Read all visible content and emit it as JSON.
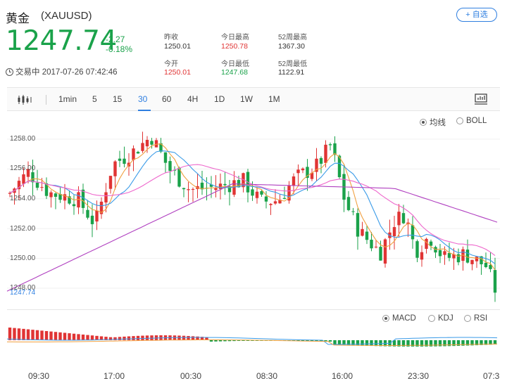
{
  "header": {
    "title": "黄金",
    "symbol": "(XAUUSD)",
    "add_label": "+ 自选",
    "price": "1247.74",
    "change": "-2.27",
    "change_pct": "-0.18%",
    "status": "交易中 2017-07-26 07:42:46",
    "stats": {
      "prev_close_label": "昨收",
      "prev_close": "1250.01",
      "open_label": "今开",
      "open": "1250.01",
      "high_label": "今日最高",
      "high": "1250.78",
      "low_label": "今日最低",
      "low": "1247.68",
      "high52_label": "52周最高",
      "high52": "1367.30",
      "low52_label": "52周最低",
      "low52": "1122.91"
    }
  },
  "toolbar": {
    "tabs": [
      "1min",
      "5",
      "15",
      "30",
      "60",
      "4H",
      "1D",
      "1W",
      "1M"
    ],
    "active_tab": "30",
    "icon_left": "candlestick-chart-icon",
    "icon_right": "fullscreen-chart-icon"
  },
  "indicators_top": {
    "ma_label": "均线",
    "boll_label": "BOLL",
    "selected": "均线"
  },
  "indicators_bottom": {
    "macd_label": "MACD",
    "kdj_label": "KDJ",
    "rsi_label": "RSI",
    "selected": "MACD"
  },
  "colors": {
    "up": "#e03434",
    "down": "#1aa24a",
    "accent": "#2f7fe0",
    "ma_purple": "#b040c0",
    "ma_pink": "#ee66cc",
    "ma_blue": "#3a9be8",
    "ma_orange": "#f0a040"
  },
  "chart_data": {
    "type": "candlestick",
    "y_ticks": [
      "1258.00",
      "1256.00",
      "1254.00",
      "1252.00",
      "1250.00",
      "1248.00"
    ],
    "current_price_label": "1247.74",
    "x_labels": [
      "09:30",
      "17:00",
      "00:30",
      "08:30",
      "16:00",
      "23:30",
      "07:3"
    ],
    "ylim": [
      1247.5,
      1259
    ]
  }
}
